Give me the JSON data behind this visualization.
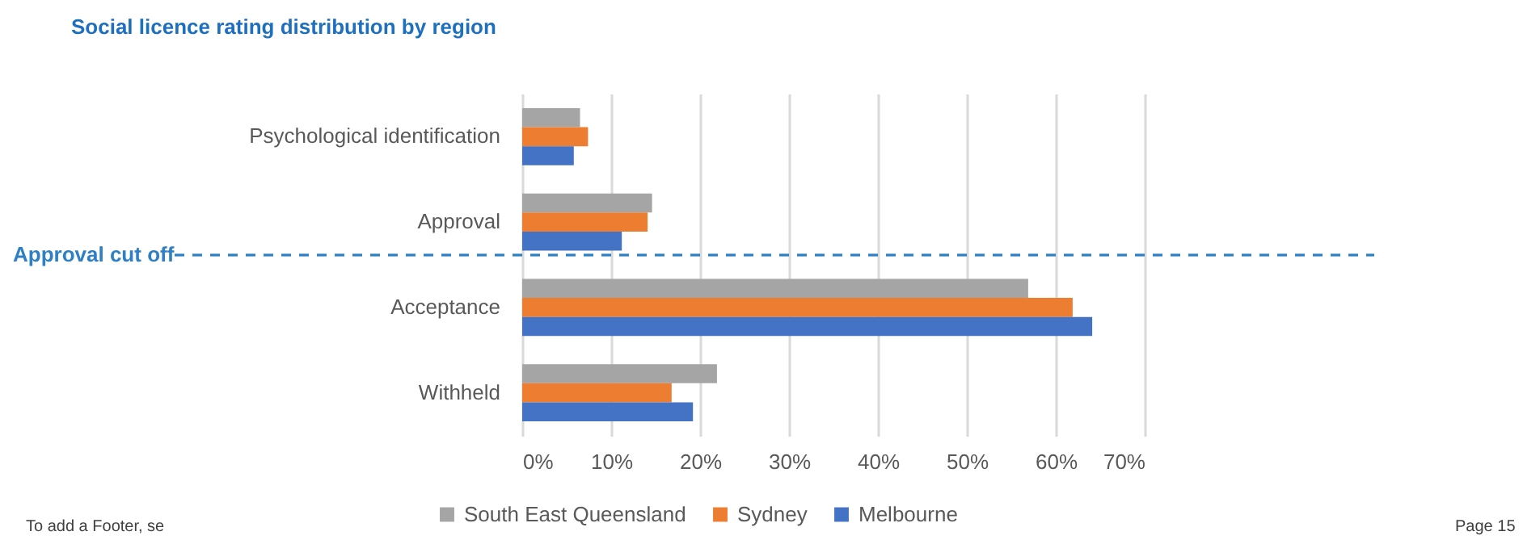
{
  "chart_data": {
    "type": "bar",
    "orientation": "horizontal",
    "title": "Social licence rating distribution by region",
    "categories": [
      "Psychological identification",
      "Approval",
      "Acceptance",
      "Withheld"
    ],
    "series": [
      {
        "name": "South East Queensland",
        "color": "#a5a5a5",
        "values": [
          6.5,
          14.6,
          56.9,
          21.9
        ]
      },
      {
        "name": "Sydney",
        "color": "#ed7d31",
        "values": [
          7.4,
          14.1,
          61.9,
          16.8
        ]
      },
      {
        "name": "Melbourne",
        "color": "#4472c4",
        "values": [
          5.8,
          11.2,
          64.1,
          19.2
        ]
      }
    ],
    "xlim": [
      0,
      70
    ],
    "xticks": [
      {
        "value": 0,
        "label": "0%"
      },
      {
        "value": 10,
        "label": "10%"
      },
      {
        "value": 20,
        "label": "20%"
      },
      {
        "value": 30,
        "label": "30%"
      },
      {
        "value": 40,
        "label": "40%"
      },
      {
        "value": 50,
        "label": "50%"
      },
      {
        "value": 60,
        "label": "60%"
      },
      {
        "value": 70,
        "label": "70%"
      }
    ],
    "grid": "x",
    "legend": "bottom",
    "annotations": [
      "Approval cut off",
      "To add a Footer, se",
      "Page 15"
    ]
  }
}
